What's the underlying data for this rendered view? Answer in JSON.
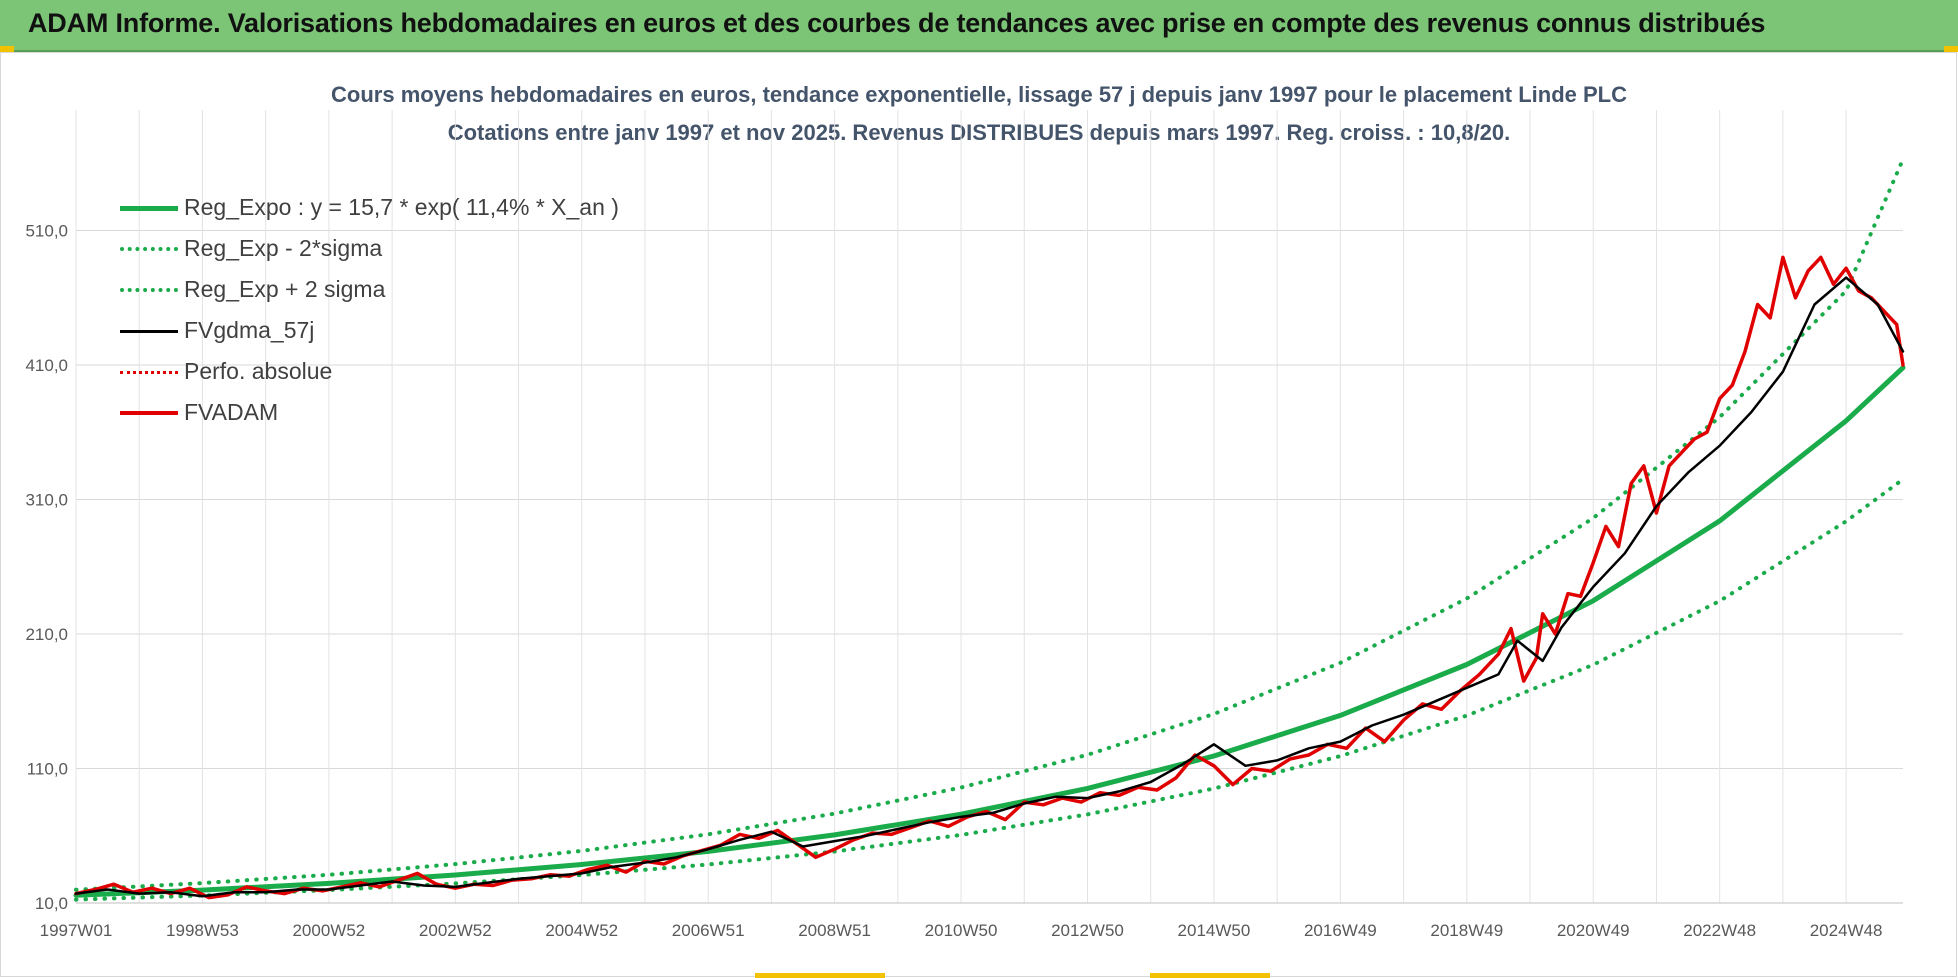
{
  "banner": {
    "title": "ADAM Informe. Valorisations hebdomadaires en euros et des courbes de tendances avec prise en compte des revenus connus distribués"
  },
  "colors": {
    "banner_bg": "#7cc576",
    "reg_expo": "#1aab4b",
    "fvgdma": "#000000",
    "perfo": "#e00000",
    "fvadam": "#e00000",
    "title_text": "#44546a"
  },
  "chart_data": {
    "type": "line",
    "title": "Cours moyens hebdomadaires en euros, tendance exponentielle, lissage 57 j depuis janv 1997 pour le placement Linde PLC",
    "subtitle": "Cotations entre janv 1997 et nov 2025. Revenus DISTRIBUES depuis mars 1997. Reg. croiss. : 10,8/20.",
    "xlabel": "",
    "ylabel": "",
    "ylim": [
      10,
      565
    ],
    "y_ticks": [
      "10,0",
      "110,0",
      "210,0",
      "310,0",
      "410,0",
      "510,0"
    ],
    "y_tick_values": [
      10,
      110,
      210,
      310,
      410,
      510
    ],
    "x_ticks": [
      "1997W01",
      "1998W53",
      "2000W52",
      "2002W52",
      "2004W52",
      "2006W51",
      "2008W51",
      "2010W50",
      "2012W50",
      "2014W50",
      "2016W49",
      "2018W49",
      "2020W49",
      "2022W48",
      "2024W48"
    ],
    "x_tick_years": [
      1997.0,
      1999.0,
      2001.0,
      2003.0,
      2005.0,
      2007.0,
      2009.0,
      2011.0,
      2013.0,
      2015.0,
      2017.0,
      2019.0,
      2021.0,
      2023.0,
      2025.0
    ],
    "xlim": [
      1997.0,
      2025.9
    ],
    "grid": true,
    "legend_position": "top-left",
    "legend": [
      {
        "key": "reg_expo",
        "label": "Reg_Expo : y = 15,7 * exp( 11,4% *  X_an )",
        "style": "solid",
        "color": "#1aab4b",
        "width": 5
      },
      {
        "key": "reg_low",
        "label": "Reg_Exp - 2*sigma",
        "style": "dotted",
        "color": "#1aab4b",
        "width": 4
      },
      {
        "key": "reg_high",
        "label": "Reg_Exp + 2 sigma",
        "style": "dotted",
        "color": "#1aab4b",
        "width": 4
      },
      {
        "key": "fvgdma",
        "label": "FVgdma_57j",
        "style": "solid",
        "color": "#000000",
        "width": 3
      },
      {
        "key": "perfo",
        "label": "Perfo. absolue",
        "style": "dotted",
        "color": "#e00000",
        "width": 3
      },
      {
        "key": "fvadam",
        "label": "FVADAM",
        "style": "solid",
        "color": "#e00000",
        "width": 4
      }
    ],
    "series": [
      {
        "name": "Reg_Expo : y = 15,7 * exp( 11,4% *  X_an )",
        "x": [
          1997.0,
          1999.0,
          2001.0,
          2003.0,
          2005.0,
          2007.0,
          2009.0,
          2011.0,
          2013.0,
          2015.0,
          2017.0,
          2019.0,
          2021.0,
          2023.0,
          2025.0,
          2025.9
        ],
        "y": [
          15.7,
          19.6,
          24.6,
          30.8,
          38.6,
          48.4,
          60.6,
          76.0,
          95.2,
          119.3,
          149.5,
          187.3,
          234.7,
          294.1,
          368.5,
          408.0
        ]
      },
      {
        "name": "Reg_Exp - 2*sigma",
        "x": [
          1997.0,
          1999.0,
          2001.0,
          2003.0,
          2005.0,
          2007.0,
          2009.0,
          2011.0,
          2013.0,
          2015.0,
          2017.0,
          2019.0,
          2021.0,
          2023.0,
          2025.0,
          2025.9
        ],
        "y": [
          12.5,
          15.6,
          19.6,
          24.6,
          30.8,
          38.6,
          48.3,
          60.6,
          75.9,
          95.1,
          119.2,
          149.3,
          187.1,
          234.5,
          293.8,
          325.0
        ]
      },
      {
        "name": "Reg_Exp + 2 sigma",
        "x": [
          1997.0,
          1999.0,
          2001.0,
          2003.0,
          2005.0,
          2007.0,
          2009.0,
          2011.0,
          2013.0,
          2015.0,
          2017.0,
          2019.0,
          2021.0,
          2023.0,
          2025.0,
          2025.9
        ],
        "y": [
          19.8,
          24.8,
          31.0,
          38.9,
          48.7,
          61.1,
          76.5,
          95.9,
          120.2,
          150.5,
          188.6,
          236.4,
          296.2,
          371.2,
          465.1,
          563.0
        ]
      },
      {
        "name": "FVgdma_57j",
        "x": [
          1997.0,
          1997.5,
          1998.0,
          1998.5,
          1999.0,
          1999.5,
          2000.0,
          2000.5,
          2001.0,
          2001.5,
          2002.0,
          2002.5,
          2003.0,
          2003.5,
          2004.0,
          2004.5,
          2005.0,
          2005.5,
          2006.0,
          2006.5,
          2007.0,
          2007.5,
          2008.0,
          2008.5,
          2009.0,
          2009.5,
          2010.0,
          2010.5,
          2011.0,
          2011.5,
          2012.0,
          2012.5,
          2013.0,
          2013.5,
          2014.0,
          2014.5,
          2015.0,
          2015.5,
          2016.0,
          2016.5,
          2017.0,
          2017.5,
          2018.0,
          2018.5,
          2019.0,
          2019.5,
          2019.8,
          2020.2,
          2020.5,
          2021.0,
          2021.5,
          2022.0,
          2022.5,
          2023.0,
          2023.5,
          2024.0,
          2024.5,
          2025.0,
          2025.5,
          2025.9
        ],
        "y": [
          17,
          20,
          17,
          18,
          15,
          18,
          18,
          20,
          20,
          23,
          26,
          23,
          22,
          25,
          28,
          30,
          32,
          37,
          40,
          44,
          50,
          57,
          63,
          52,
          56,
          60,
          65,
          70,
          74,
          77,
          84,
          89,
          88,
          93,
          100,
          113,
          128,
          112,
          116,
          125,
          130,
          142,
          150,
          160,
          170,
          180,
          205,
          190,
          215,
          245,
          270,
          305,
          330,
          350,
          375,
          405,
          455,
          475,
          455,
          420
        ]
      },
      {
        "name": "Perfo. absolue",
        "x": [],
        "y": []
      },
      {
        "name": "FVADAM",
        "x": [
          1997.0,
          1997.3,
          1997.6,
          1997.9,
          1998.2,
          1998.5,
          1998.8,
          1999.1,
          1999.4,
          1999.7,
          2000.0,
          2000.3,
          2000.6,
          2000.9,
          2001.2,
          2001.5,
          2001.8,
          2002.1,
          2002.4,
          2002.7,
          2003.0,
          2003.3,
          2003.6,
          2003.9,
          2004.2,
          2004.5,
          2004.8,
          2005.1,
          2005.4,
          2005.7,
          2006.0,
          2006.3,
          2006.6,
          2006.9,
          2007.2,
          2007.5,
          2007.8,
          2008.1,
          2008.4,
          2008.7,
          2009.0,
          2009.3,
          2009.6,
          2009.9,
          2010.2,
          2010.5,
          2010.8,
          2011.1,
          2011.4,
          2011.7,
          2012.0,
          2012.3,
          2012.6,
          2012.9,
          2013.2,
          2013.5,
          2013.8,
          2014.1,
          2014.4,
          2014.7,
          2015.0,
          2015.3,
          2015.6,
          2015.9,
          2016.2,
          2016.5,
          2016.8,
          2017.1,
          2017.4,
          2017.7,
          2018.0,
          2018.3,
          2018.6,
          2018.9,
          2019.2,
          2019.5,
          2019.7,
          2019.9,
          2020.1,
          2020.2,
          2020.4,
          2020.6,
          2020.8,
          2021.0,
          2021.2,
          2021.4,
          2021.6,
          2021.8,
          2022.0,
          2022.2,
          2022.4,
          2022.6,
          2022.8,
          2023.0,
          2023.2,
          2023.4,
          2023.6,
          2023.8,
          2024.0,
          2024.2,
          2024.4,
          2024.6,
          2024.8,
          2025.0,
          2025.2,
          2025.4,
          2025.6,
          2025.8,
          2025.9
        ],
        "y": [
          17,
          20,
          24,
          18,
          21,
          17,
          21,
          14,
          16,
          22,
          19,
          17,
          21,
          19,
          22,
          25,
          22,
          27,
          32,
          24,
          21,
          24,
          23,
          27,
          28,
          31,
          30,
          35,
          38,
          33,
          41,
          39,
          45,
          49,
          53,
          61,
          58,
          64,
          54,
          44,
          50,
          57,
          62,
          61,
          66,
          71,
          67,
          74,
          78,
          72,
          85,
          83,
          88,
          85,
          92,
          90,
          96,
          94,
          103,
          120,
          112,
          98,
          110,
          108,
          117,
          120,
          128,
          125,
          140,
          130,
          146,
          158,
          154,
          168,
          180,
          195,
          214,
          175,
          192,
          225,
          210,
          240,
          238,
          263,
          290,
          275,
          322,
          335,
          300,
          335,
          345,
          355,
          360,
          385,
          395,
          420,
          455,
          445,
          490,
          460,
          480,
          490,
          470,
          482,
          465,
          460,
          450,
          440,
          410
        ]
      }
    ]
  }
}
